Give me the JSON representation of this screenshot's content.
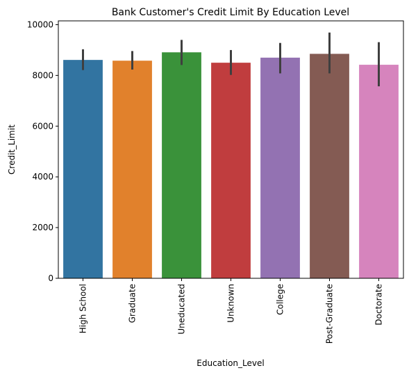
{
  "chart_data": {
    "type": "bar",
    "title": "Bank Customer's Credit Limit By Education Level",
    "xlabel": "Education_Level",
    "ylabel": "Credit_Limit",
    "ylim": [
      0,
      10150
    ],
    "yticks": [
      0,
      2000,
      4000,
      6000,
      8000,
      10000
    ],
    "grid": false,
    "legend": "none",
    "categories": [
      "High School",
      "Graduate",
      "Uneducated",
      "Unknown",
      "College",
      "Post-Graduate",
      "Doctorate"
    ],
    "values": [
      8610,
      8580,
      8910,
      8500,
      8700,
      8850,
      8420
    ],
    "error_low": [
      8210,
      8230,
      8410,
      8020,
      8080,
      8080,
      7570
    ],
    "error_high": [
      9030,
      8960,
      9400,
      9000,
      9280,
      9690,
      9310
    ],
    "colors": [
      "#3274a1",
      "#e1812c",
      "#3a923a",
      "#c03d3e",
      "#9372b2",
      "#845b53",
      "#d684bd"
    ],
    "error_color": "#3f3f3f"
  }
}
